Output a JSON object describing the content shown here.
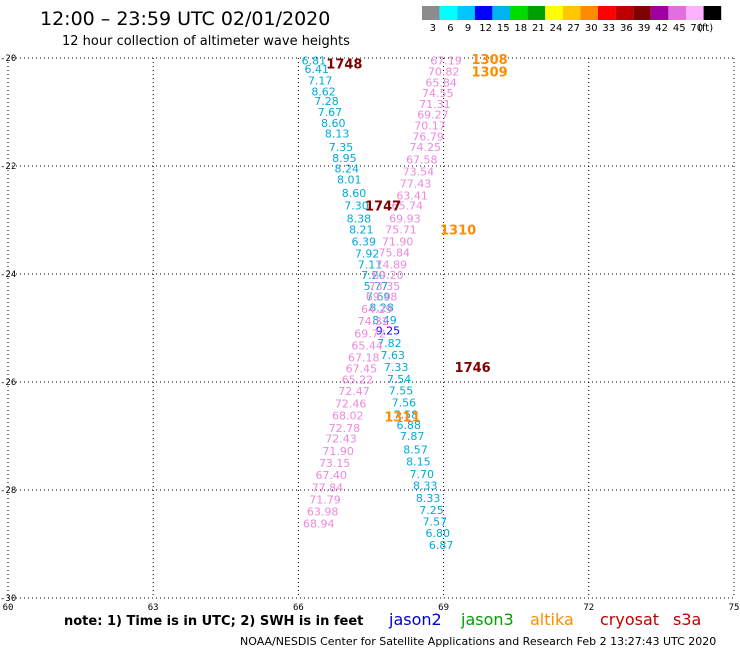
{
  "header": {
    "title": "12:00 – 23:59 UTC 02/01/2020",
    "subtitle": "12 hour collection of altimeter wave heights"
  },
  "legend": {
    "colors": [
      "#8c8c8c",
      "#00ffff",
      "#00c8ff",
      "#0000ff",
      "#00b4f0",
      "#00dc00",
      "#00a000",
      "#ffff00",
      "#ffc800",
      "#ff8c00",
      "#ff0000",
      "#c00000",
      "#800000",
      "#a000a0",
      "#e070e0",
      "#ffb0ff",
      "#000000"
    ],
    "labels": [
      "3",
      "6",
      "9",
      "12",
      "15",
      "18",
      "21",
      "24",
      "27",
      "30",
      "33",
      "36",
      "39",
      "42",
      "45",
      "70",
      "(ft)"
    ]
  },
  "chart_data": {
    "type": "scatter",
    "xlim": [
      60,
      75
    ],
    "ylim": [
      -30,
      -20
    ],
    "xticks": [
      "60",
      "63",
      "66",
      "69",
      "72",
      "75"
    ],
    "yticks": [
      "-20",
      "-22",
      "-24",
      "-26",
      "-28",
      "-30"
    ],
    "grid": true,
    "series": [
      {
        "name": "jason2-cyan",
        "color": "#00aadd",
        "points": [
          [
            66.32,
            -20.05,
            "6.81"
          ],
          [
            66.38,
            -20.2,
            "6.41"
          ],
          [
            66.45,
            -20.42,
            "7.17"
          ],
          [
            66.52,
            -20.62,
            "8.62"
          ],
          [
            66.58,
            -20.8,
            "7.28"
          ],
          [
            66.65,
            -21.0,
            "7.67"
          ],
          [
            66.72,
            -21.2,
            "8.60"
          ],
          [
            66.8,
            -21.4,
            "8.13"
          ],
          [
            66.88,
            -21.65,
            "7.35"
          ],
          [
            66.95,
            -21.85,
            "8.95"
          ],
          [
            67.0,
            -22.05,
            "8.24"
          ],
          [
            67.05,
            -22.25,
            "8.01"
          ],
          [
            67.15,
            -22.5,
            "8.60"
          ],
          [
            67.2,
            -22.73,
            "7.30"
          ],
          [
            67.25,
            -22.97,
            "8.38"
          ],
          [
            67.3,
            -23.18,
            "8.21"
          ],
          [
            67.35,
            -23.4,
            "6.39"
          ],
          [
            67.42,
            -23.62,
            "7.92"
          ],
          [
            67.48,
            -23.82,
            "7.11"
          ],
          [
            67.55,
            -24.02,
            "7.20"
          ],
          [
            67.6,
            -24.22,
            "5.77"
          ],
          [
            67.65,
            -24.42,
            "7.69"
          ],
          [
            67.72,
            -24.62,
            "8.28"
          ],
          [
            67.78,
            -24.85,
            "8.49"
          ],
          [
            67.88,
            -25.28,
            "7.82"
          ],
          [
            67.95,
            -25.5,
            "7.63"
          ],
          [
            68.02,
            -25.72,
            "7.33"
          ],
          [
            68.08,
            -25.94,
            "7.54"
          ],
          [
            68.12,
            -26.16,
            "7.55"
          ],
          [
            68.18,
            -26.38,
            "7.56"
          ],
          [
            68.22,
            -26.6,
            "7.58"
          ],
          [
            68.28,
            -26.8,
            "6.88"
          ],
          [
            68.35,
            -27.0,
            "7.87"
          ],
          [
            68.42,
            -27.25,
            "8.57"
          ],
          [
            68.48,
            -27.47,
            "8.15"
          ],
          [
            68.55,
            -27.7,
            "7.70"
          ],
          [
            68.62,
            -27.92,
            "8.33"
          ],
          [
            68.68,
            -28.15,
            "8.33"
          ],
          [
            68.75,
            -28.37,
            "7.25"
          ],
          [
            68.82,
            -28.58,
            "7.57"
          ],
          [
            68.88,
            -28.8,
            "6.80"
          ],
          [
            68.95,
            -29.02,
            "6.87"
          ]
        ]
      },
      {
        "name": "jason2-blue",
        "color": "#0000ff",
        "points": [
          [
            67.85,
            -25.05,
            "9.25"
          ]
        ]
      },
      {
        "name": "s3a-pink",
        "color": "#ee88dd",
        "points": [
          [
            69.05,
            -20.05,
            "67.19"
          ],
          [
            69.0,
            -20.25,
            "70.82"
          ],
          [
            68.95,
            -20.45,
            "65.84"
          ],
          [
            68.88,
            -20.65,
            "74.55"
          ],
          [
            68.82,
            -20.85,
            "71.31"
          ],
          [
            68.78,
            -21.05,
            "69.27"
          ],
          [
            68.72,
            -21.25,
            "70.17"
          ],
          [
            68.68,
            -21.45,
            "76.79"
          ],
          [
            68.62,
            -21.65,
            "74.25"
          ],
          [
            68.55,
            -21.88,
            "67.58"
          ],
          [
            68.48,
            -22.1,
            "73.54"
          ],
          [
            68.42,
            -22.32,
            "77.43"
          ],
          [
            68.35,
            -22.55,
            "63.41"
          ],
          [
            68.25,
            -22.73,
            "65.74"
          ],
          [
            68.2,
            -22.97,
            "69.93"
          ],
          [
            68.12,
            -23.18,
            "75.71"
          ],
          [
            68.05,
            -23.4,
            "71.90"
          ],
          [
            67.98,
            -23.6,
            "75.84"
          ],
          [
            67.92,
            -23.82,
            "74.89"
          ],
          [
            67.85,
            -24.02,
            "69.20"
          ],
          [
            67.78,
            -24.22,
            "73.35"
          ],
          [
            67.72,
            -24.42,
            "69.48"
          ],
          [
            67.62,
            -24.65,
            "64.29"
          ],
          [
            67.55,
            -24.87,
            "74.32"
          ],
          [
            67.48,
            -25.1,
            "69.72"
          ],
          [
            67.42,
            -25.32,
            "65.44"
          ],
          [
            67.35,
            -25.55,
            "67.18"
          ],
          [
            67.3,
            -25.75,
            "67.45"
          ],
          [
            67.22,
            -25.95,
            "65.22"
          ],
          [
            67.15,
            -26.17,
            "72.47"
          ],
          [
            67.08,
            -26.4,
            "72.46"
          ],
          [
            67.02,
            -26.62,
            "68.02"
          ],
          [
            66.95,
            -26.85,
            "72.78"
          ],
          [
            66.88,
            -27.05,
            "72.43"
          ],
          [
            66.82,
            -27.28,
            "71.90"
          ],
          [
            66.75,
            -27.5,
            "73.15"
          ],
          [
            66.68,
            -27.72,
            "67.40"
          ],
          [
            66.6,
            -27.95,
            "77.84"
          ],
          [
            66.55,
            -28.18,
            "71.79"
          ],
          [
            66.5,
            -28.4,
            "63.98"
          ],
          [
            66.42,
            -28.62,
            "68.94"
          ]
        ]
      }
    ],
    "pass_labels": [
      {
        "text": "1748",
        "x": 66.95,
        "y": -20.1,
        "color": "#800000"
      },
      {
        "text": "1747",
        "x": 67.75,
        "y": -22.73,
        "color": "#800000"
      },
      {
        "text": "1746",
        "x": 69.6,
        "y": -25.72,
        "color": "#800000"
      },
      {
        "text": "1308",
        "x": 69.95,
        "y": -20.02,
        "color": "#ff8c00"
      },
      {
        "text": "1309",
        "x": 69.95,
        "y": -20.25,
        "color": "#ff8c00"
      },
      {
        "text": "1310",
        "x": 69.3,
        "y": -23.18,
        "color": "#ff8c00"
      },
      {
        "text": "1311",
        "x": 68.15,
        "y": -26.64,
        "color": "#ff8c00"
      }
    ]
  },
  "footer": {
    "note": "note: 1) Time is in UTC; 2) SWH is in feet",
    "satellites": [
      {
        "name": "jason2",
        "color": "#0000cc"
      },
      {
        "name": "jason3",
        "color": "#00a000"
      },
      {
        "name": "altika",
        "color": "#ff8c00"
      },
      {
        "name": "cryosat",
        "color": "#c00000"
      },
      {
        "name": "s3a",
        "color": "#c00000"
      }
    ],
    "credit": "NOAA/NESDIS Center for Satellite Applications and Research     Feb  2 13:27:43 UTC 2020"
  }
}
